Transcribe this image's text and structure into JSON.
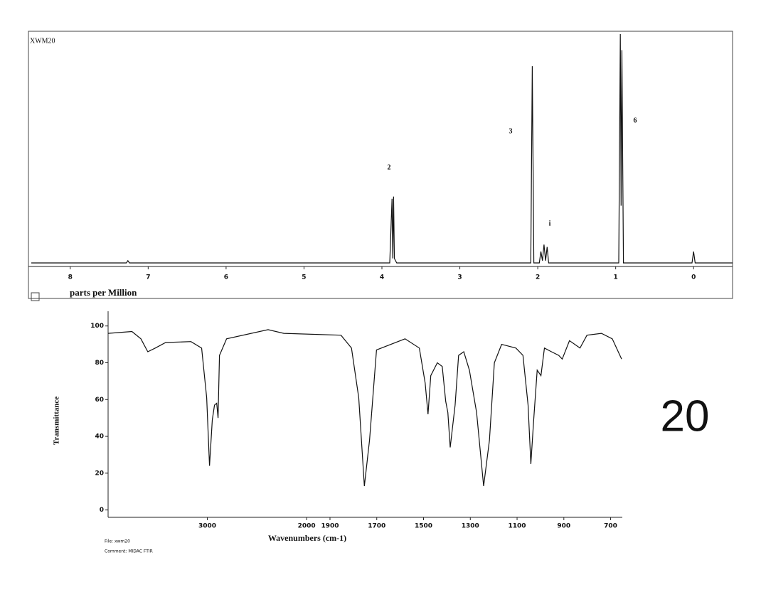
{
  "page_label": "20",
  "chart_data": [
    {
      "type": "line",
      "title": "XWM20",
      "x_label": "parts per Million",
      "xlim": [
        8.5,
        -0.5
      ],
      "xticks": [
        8,
        7,
        6,
        5,
        4,
        3,
        2,
        1,
        0
      ],
      "ylim": [
        0,
        100
      ],
      "annotations": [
        "2",
        "3",
        "i",
        "6"
      ],
      "x": [
        8.5,
        7.28,
        7.26,
        7.24,
        3.9,
        3.87,
        3.86,
        3.85,
        3.84,
        3.81,
        2.09,
        2.07,
        2.05,
        1.98,
        1.96,
        1.94,
        1.92,
        1.9,
        1.88,
        1.86,
        0.96,
        0.94,
        0.93,
        0.92,
        0.9,
        0.02,
        0.0,
        -0.02,
        -0.5
      ],
      "series": [
        {
          "color": "#111111",
          "values": [
            0,
            0,
            1,
            0,
            0,
            28,
            2,
            29,
            2,
            0,
            0,
            86,
            0,
            0,
            5,
            1,
            8,
            1,
            7,
            0,
            0,
            100,
            25,
            93,
            0,
            0,
            5,
            0,
            0
          ]
        }
      ]
    },
    {
      "type": "line",
      "y_label": "Transmittance",
      "x_label": "Wavenumbers (cm-1)",
      "footnotes": [
        "File: xwm20",
        "Comment: MIDAC FTIR"
      ],
      "xlim": [
        4000,
        650
      ],
      "x_scale_break": 2000,
      "xticks": [
        3000,
        2000,
        1900,
        1700,
        1500,
        1300,
        1100,
        900,
        700
      ],
      "ylim": [
        -4,
        108
      ],
      "yticks": [
        0,
        20,
        40,
        60,
        80,
        100
      ],
      "x": [
        4000,
        3760,
        3670,
        3600,
        3525,
        3420,
        3165,
        3058,
        3007,
        2978,
        2950,
        2928,
        2906,
        2892,
        2878,
        2806,
        2388,
        2230,
        1853,
        1808,
        1777,
        1753,
        1731,
        1701,
        1579,
        1518,
        1493,
        1481,
        1469,
        1441,
        1420,
        1405,
        1396,
        1386,
        1377,
        1365,
        1350,
        1328,
        1304,
        1273,
        1243,
        1218,
        1197,
        1166,
        1105,
        1075,
        1053,
        1041,
        1029,
        1014,
        998,
        983,
        953,
        922,
        907,
        876,
        831,
        801,
        739,
        693,
        653
      ],
      "series": [
        {
          "color": "#111111",
          "values": [
            96,
            97,
            93,
            86,
            88,
            91,
            91.5,
            88,
            61,
            24,
            49,
            57,
            58,
            50,
            84,
            93,
            98,
            96,
            95,
            88,
            61,
            13,
            38,
            87,
            93,
            88,
            69,
            52,
            73,
            80,
            78,
            59,
            53,
            34,
            44,
            57,
            84,
            86,
            76,
            53,
            13,
            38,
            80,
            90,
            88,
            84,
            57,
            25,
            49,
            76,
            73,
            88,
            86,
            84,
            82,
            92,
            88,
            95,
            96,
            93,
            82
          ]
        }
      ]
    }
  ]
}
